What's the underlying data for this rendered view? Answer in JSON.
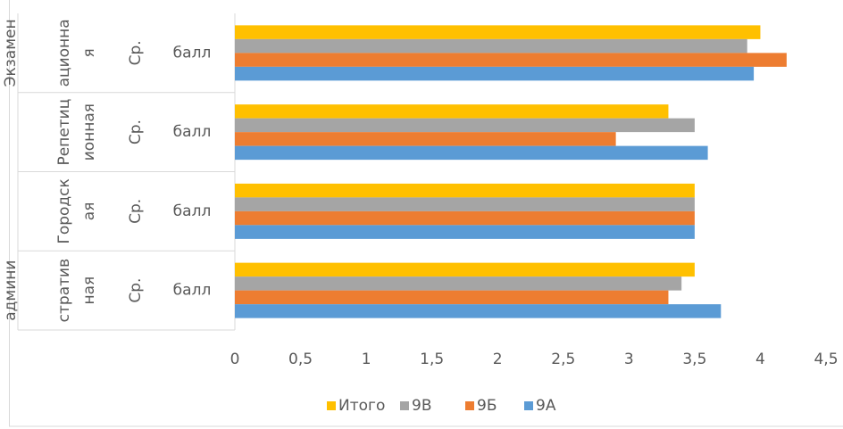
{
  "chart_data": {
    "type": "bar",
    "orientation": "horizontal",
    "categories": [
      {
        "group": [
          "Экзамен",
          "ационна",
          "я"
        ],
        "sub": "Ср.",
        "unit": "балл"
      },
      {
        "group": [
          "Репетиц",
          "ионная"
        ],
        "sub": "Ср.",
        "unit": "балл"
      },
      {
        "group": [
          "Городск",
          "ая"
        ],
        "sub": "Ср.",
        "unit": "балл"
      },
      {
        "group": [
          "админи",
          "стратив",
          "ная"
        ],
        "sub": "Ср.",
        "unit": "балл"
      }
    ],
    "series": [
      {
        "name": "Итого",
        "color": "#ffc000",
        "values": [
          4.0,
          3.3,
          3.5,
          3.5
        ]
      },
      {
        "name": "9В",
        "color": "#a5a5a5",
        "values": [
          3.9,
          3.5,
          3.5,
          3.4
        ]
      },
      {
        "name": "9Б",
        "color": "#ed7d31",
        "values": [
          4.2,
          2.9,
          3.5,
          3.3
        ]
      },
      {
        "name": "9А",
        "color": "#5b9bd5",
        "values": [
          3.95,
          3.6,
          3.5,
          3.7
        ]
      }
    ],
    "xlim": [
      0,
      4.5
    ],
    "xticks": [
      0,
      {
        "value": 0.5,
        "label": "0,5"
      },
      1,
      {
        "value": 1.5,
        "label": "1,5"
      },
      2,
      {
        "value": 2.5,
        "label": "2,5"
      },
      3,
      {
        "value": 3.5,
        "label": "3,5"
      },
      4,
      {
        "value": 4.5,
        "label": "4,5"
      }
    ],
    "legend": "bottom"
  }
}
